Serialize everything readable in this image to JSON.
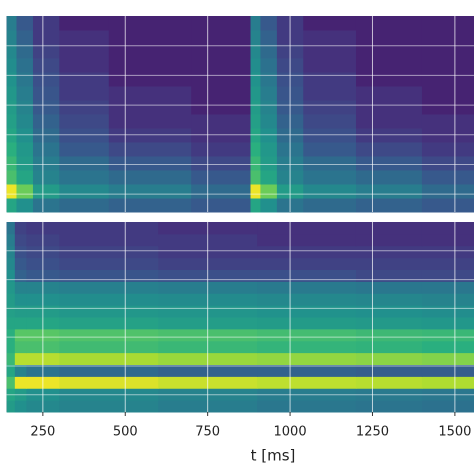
{
  "chart_data": [
    {
      "type": "heatmap",
      "colormap": "viridis",
      "xlim": [
        120,
        1558
      ],
      "xticks": [
        250,
        500,
        750,
        1000,
        1250,
        1500
      ],
      "grid": true,
      "xbins": [
        140,
        170,
        220,
        300,
        450,
        700,
        880,
        910,
        960,
        1040,
        1200,
        1400,
        1557
      ],
      "z": [
        [
          0.35,
          0.25,
          0.15,
          0.12,
          0.1,
          0.08,
          0.35,
          0.25,
          0.15,
          0.12,
          0.1,
          0.08
        ],
        [
          0.95,
          0.6,
          0.3,
          0.22,
          0.18,
          0.12,
          0.95,
          0.6,
          0.3,
          0.22,
          0.18,
          0.12
        ],
        [
          0.5,
          0.35,
          0.2,
          0.15,
          0.12,
          0.08,
          0.5,
          0.35,
          0.2,
          0.15,
          0.12,
          0.08
        ],
        [
          0.45,
          0.3,
          0.18,
          0.12,
          0.08,
          0.05,
          0.45,
          0.3,
          0.18,
          0.12,
          0.08,
          0.05
        ],
        [
          0.4,
          0.28,
          0.15,
          0.08,
          0.05,
          0.03,
          0.4,
          0.28,
          0.15,
          0.08,
          0.05,
          0.03
        ],
        [
          0.35,
          0.25,
          0.12,
          0.06,
          0.03,
          0.02,
          0.35,
          0.25,
          0.12,
          0.06,
          0.03,
          0.02
        ],
        [
          0.32,
          0.22,
          0.1,
          0.05,
          0.02,
          0.02,
          0.32,
          0.22,
          0.1,
          0.05,
          0.02,
          0.02
        ],
        [
          0.3,
          0.2,
          0.08,
          0.04,
          0.02,
          0.01,
          0.3,
          0.2,
          0.08,
          0.04,
          0.02,
          0.01
        ],
        [
          0.28,
          0.18,
          0.07,
          0.03,
          0.02,
          0.01,
          0.28,
          0.18,
          0.07,
          0.03,
          0.02,
          0.01
        ],
        [
          0.26,
          0.16,
          0.06,
          0.03,
          0.01,
          0.01,
          0.26,
          0.16,
          0.06,
          0.03,
          0.01,
          0.01
        ],
        [
          0.24,
          0.14,
          0.05,
          0.02,
          0.01,
          0.01,
          0.24,
          0.14,
          0.05,
          0.02,
          0.01,
          0.01
        ],
        [
          0.22,
          0.12,
          0.04,
          0.02,
          0.01,
          0.01,
          0.22,
          0.12,
          0.04,
          0.02,
          0.01,
          0.01
        ],
        [
          0.2,
          0.1,
          0.03,
          0.02,
          0.01,
          0.01,
          0.2,
          0.1,
          0.03,
          0.02,
          0.01,
          0.01
        ],
        [
          0.18,
          0.08,
          0.03,
          0.01,
          0.01,
          0.01,
          0.18,
          0.08,
          0.03,
          0.01,
          0.01,
          0.01
        ]
      ]
    },
    {
      "type": "heatmap",
      "colormap": "viridis",
      "xlim": [
        120,
        1558
      ],
      "xticks": [
        250,
        500,
        750,
        1000,
        1250,
        1500
      ],
      "grid": true,
      "xlabel": "t [ms]",
      "xbins": [
        140,
        165,
        200,
        300,
        600,
        900,
        1200,
        1400,
        1557
      ],
      "z": [
        [
          0.3,
          0.25,
          0.22,
          0.2,
          0.18,
          0.16,
          0.15,
          0.14
        ],
        [
          0.35,
          0.3,
          0.25,
          0.22,
          0.2,
          0.18,
          0.17,
          0.16
        ],
        [
          0.5,
          0.95,
          0.95,
          0.9,
          0.85,
          0.82,
          0.8,
          0.78
        ],
        [
          0.35,
          0.2,
          0.15,
          0.12,
          0.1,
          0.1,
          0.09,
          0.09
        ],
        [
          0.45,
          0.8,
          0.8,
          0.76,
          0.72,
          0.7,
          0.68,
          0.66
        ],
        [
          0.4,
          0.5,
          0.5,
          0.47,
          0.45,
          0.43,
          0.42,
          0.4
        ],
        [
          0.4,
          0.55,
          0.55,
          0.52,
          0.5,
          0.48,
          0.46,
          0.45
        ],
        [
          0.35,
          0.35,
          0.35,
          0.33,
          0.31,
          0.3,
          0.29,
          0.28
        ],
        [
          0.32,
          0.3,
          0.3,
          0.28,
          0.27,
          0.26,
          0.25,
          0.24
        ],
        [
          0.3,
          0.25,
          0.25,
          0.24,
          0.23,
          0.22,
          0.21,
          0.2
        ],
        [
          0.28,
          0.2,
          0.2,
          0.19,
          0.18,
          0.17,
          0.16,
          0.16
        ],
        [
          0.25,
          0.1,
          0.08,
          0.07,
          0.06,
          0.06,
          0.05,
          0.05
        ],
        [
          0.22,
          0.08,
          0.06,
          0.05,
          0.04,
          0.04,
          0.04,
          0.04
        ],
        [
          0.2,
          0.06,
          0.05,
          0.04,
          0.03,
          0.03,
          0.03,
          0.03
        ],
        [
          0.18,
          0.05,
          0.04,
          0.03,
          0.03,
          0.02,
          0.02,
          0.02
        ],
        [
          0.15,
          0.04,
          0.03,
          0.03,
          0.02,
          0.02,
          0.02,
          0.02
        ]
      ]
    }
  ]
}
